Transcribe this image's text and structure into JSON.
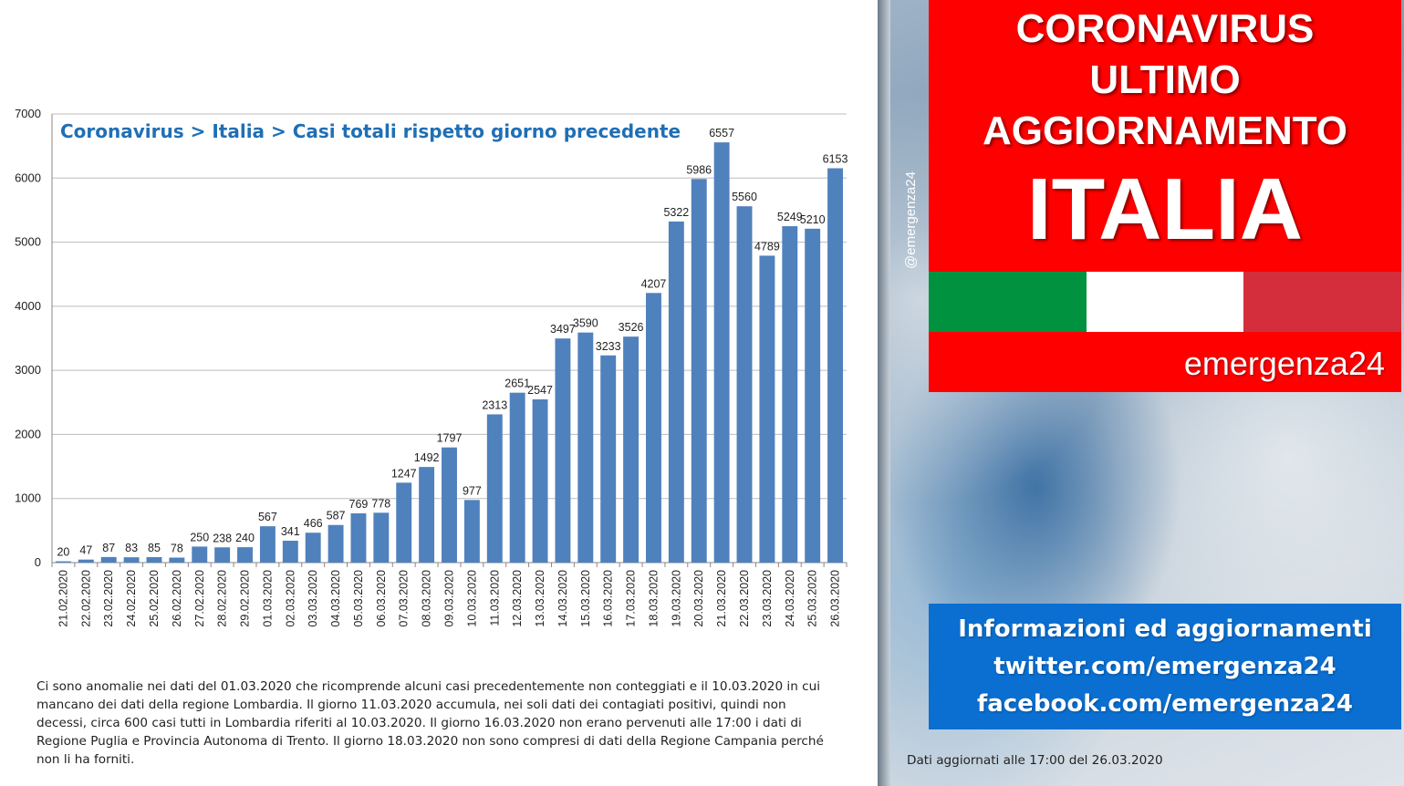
{
  "chart_data": {
    "type": "bar",
    "title": "Coronavirus > Italia > Casi totali rispetto giorno precedente",
    "xlabel": "",
    "ylabel": "",
    "ylim": [
      0,
      7000
    ],
    "yticks": [
      0,
      1000,
      2000,
      3000,
      4000,
      5000,
      6000,
      7000
    ],
    "grid": true,
    "bar_color": "#4f81bd",
    "categories": [
      "21.02.2020",
      "22.02.2020",
      "23.02.2020",
      "24.02.2020",
      "25.02.2020",
      "26.02.2020",
      "27.02.2020",
      "28.02.2020",
      "29.02.2020",
      "01.03.2020",
      "02.03.2020",
      "03.03.2020",
      "04.03.2020",
      "05.03.2020",
      "06.03.2020",
      "07.03.2020",
      "08.03.2020",
      "09.03.2020",
      "10.03.2020",
      "11.03.2020",
      "12.03.2020",
      "13.03.2020",
      "14.03.2020",
      "15.03.2020",
      "16.03.2020",
      "17.03.2020",
      "18.03.2020",
      "19.03.2020",
      "20.03.2020",
      "21.03.2020",
      "22.03.2020",
      "23.03.2020",
      "24.03.2020",
      "25.03.2020",
      "26.03.2020"
    ],
    "values": [
      20,
      47,
      87,
      83,
      85,
      78,
      250,
      238,
      240,
      567,
      341,
      466,
      587,
      769,
      778,
      1247,
      1492,
      1797,
      977,
      2313,
      2651,
      2547,
      3497,
      3590,
      3233,
      3526,
      4207,
      5322,
      5986,
      6557,
      5560,
      4789,
      5249,
      5210,
      6153
    ]
  },
  "note": "Ci sono anomalie nei dati del 01.03.2020 che ricomprende alcuni casi precedentemente non conteggiati e il 10.03.2020 in cui mancano dei dati della regione Lombardia. Il giorno 11.03.2020 accumula, nei soli dati dei contagiati positivi, quindi non decessi, circa 600 casi tutti in Lombardia riferiti al 10.03.2020. Il giorno 16.03.2020 non erano pervenuti alle 17:00 i dati di Regione Puglia e Provincia Autonoma di Trento. Il giorno 18.03.2020 non sono compresi di dati della Regione Campania perché non li ha forniti.",
  "banner": {
    "line1": "CORONAVIRUS",
    "line2": "ULTIMO",
    "line3": "AGGIORNAMENTO",
    "line4": "ITALIA",
    "color": "#ff0000"
  },
  "flag_colors": [
    "#00923f",
    "#ffffff",
    "#d42e3c"
  ],
  "brand": "emergenza24",
  "handle": "@emergenza24",
  "info": {
    "line1": "Informazioni ed aggiornamenti",
    "line2": "twitter.com/emergenza24",
    "line3": "facebook.com/emergenza24",
    "color": "#0a6fd1"
  },
  "updated": "Dati aggiornati alle 17:00 del 26.03.2020"
}
